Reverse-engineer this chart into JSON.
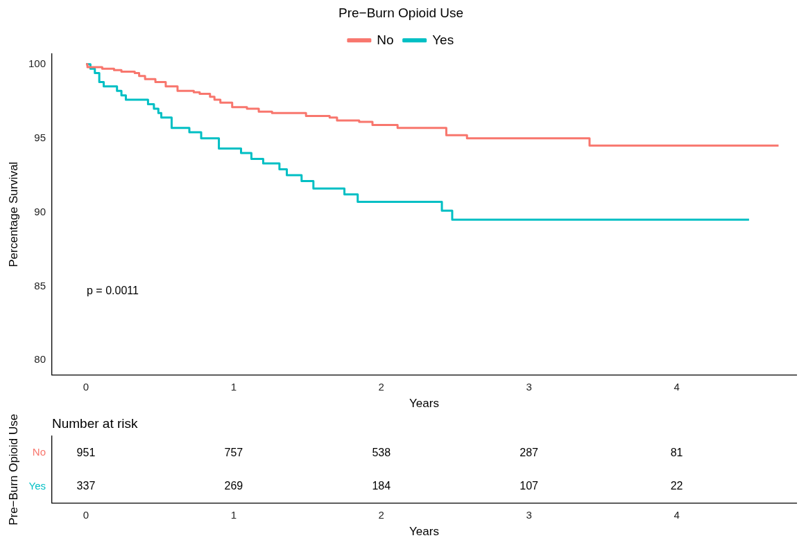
{
  "chart_data": [
    {
      "type": "step",
      "xlabel": "Years",
      "ylabel": "Percentage Survival",
      "legend_title": "Pre−Burn Opioid Use",
      "legend": "top",
      "grid": false,
      "xlim": [
        -0.23,
        4.81
      ],
      "xticks": [
        0,
        1,
        2,
        3,
        4
      ],
      "ylim": [
        79.0,
        100.7
      ],
      "yticks": [
        80,
        85,
        90,
        95,
        100
      ],
      "annotations": [
        "p = 0.0011"
      ],
      "series": [
        {
          "name": "No",
          "color": "#f8766d",
          "x": [
            0,
            0.01,
            0.11,
            0.19,
            0.24,
            0.33,
            0.36,
            0.4,
            0.47,
            0.54,
            0.62,
            0.73,
            0.77,
            0.84,
            0.87,
            0.91,
            0.99,
            1.09,
            1.17,
            1.26,
            1.49,
            1.65,
            1.7,
            1.85,
            1.94,
            2.11,
            2.44,
            2.58,
            3.41,
            4.69
          ],
          "values": [
            100,
            99.8,
            99.7,
            99.6,
            99.5,
            99.4,
            99.2,
            99.0,
            98.8,
            98.5,
            98.2,
            98.1,
            98.0,
            97.8,
            97.6,
            97.4,
            97.1,
            97.0,
            96.8,
            96.7,
            96.5,
            96.4,
            96.2,
            96.1,
            95.9,
            95.7,
            95.2,
            95.0,
            94.5,
            94.5
          ]
        },
        {
          "name": "Yes",
          "color": "#00bfc4",
          "x": [
            0,
            0.03,
            0.06,
            0.09,
            0.12,
            0.21,
            0.24,
            0.27,
            0.42,
            0.46,
            0.49,
            0.51,
            0.58,
            0.7,
            0.78,
            0.9,
            1.05,
            1.12,
            1.2,
            1.31,
            1.36,
            1.46,
            1.54,
            1.75,
            1.84,
            2.41,
            2.48,
            4.49
          ],
          "values": [
            100,
            99.7,
            99.4,
            98.8,
            98.5,
            98.2,
            97.9,
            97.6,
            97.3,
            97.0,
            96.7,
            96.4,
            95.7,
            95.4,
            95.0,
            94.3,
            94.0,
            93.6,
            93.3,
            92.9,
            92.5,
            92.1,
            91.6,
            91.2,
            90.7,
            90.1,
            89.5,
            89.5
          ]
        }
      ]
    },
    {
      "type": "heatmap",
      "title": "Number at risk",
      "xlabel": "Years",
      "ylabel": "Pre−Burn Opioid Use",
      "x": [
        0,
        1,
        2,
        3,
        4
      ],
      "xlim": [
        -0.23,
        4.81
      ],
      "xticks": [
        0,
        1,
        2,
        3,
        4
      ],
      "y_categories": [
        "No",
        "Yes"
      ],
      "colors": [
        "#f8766d",
        "#00bfc4"
      ],
      "data_labels": true,
      "cells": [
        [
          951,
          757,
          538,
          287,
          81
        ],
        [
          337,
          269,
          184,
          107,
          22
        ]
      ]
    }
  ]
}
